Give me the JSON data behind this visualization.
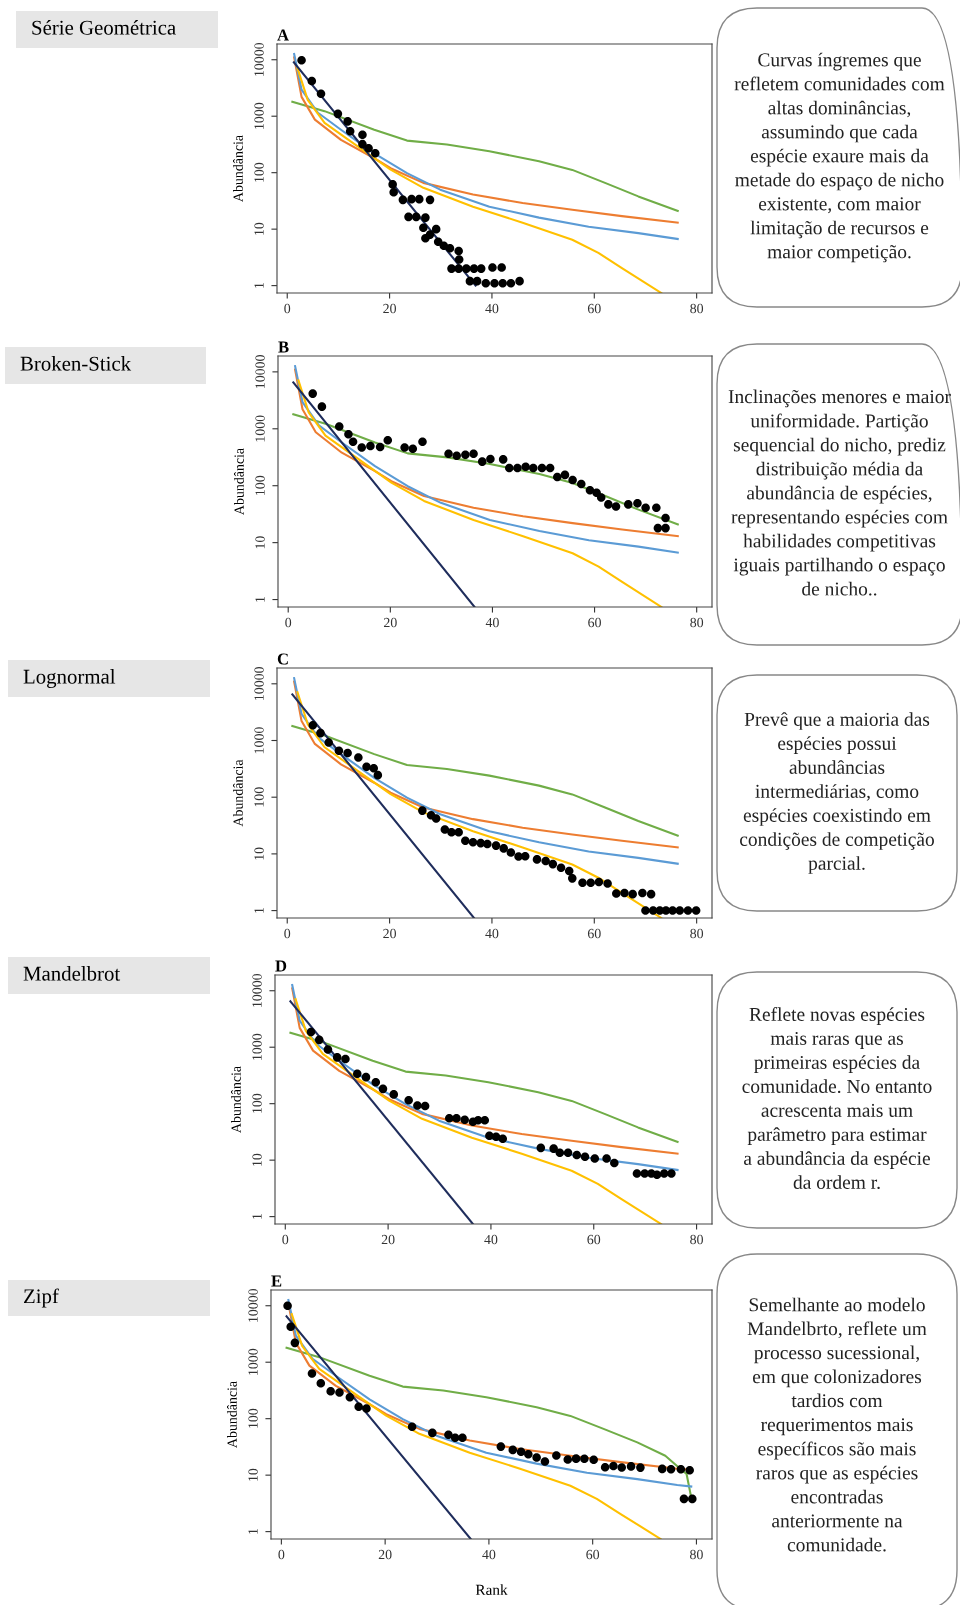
{
  "chart_data": [
    {
      "type": "line",
      "title": "A",
      "ylabel": "Abundância",
      "log": "y",
      "xlim": [
        -2,
        83
      ],
      "ylim": [
        0.74,
        19000
      ],
      "xticks": [
        0,
        20,
        40,
        60,
        80
      ],
      "yticks": [
        1,
        10,
        100,
        1000,
        10000
      ],
      "annotations": [
        "Série Geométrica",
        "Curvas íngremes que\nrefletem comunidades com\naltas dominâncias,\nassumindo que cada\nespécie exaure mais da\nmetade do espaço de nicho\nexistente, com maior\nlimitação de recursos e\nmaior competição."
      ],
      "series": [
        {
          "color": "#70ad47",
          "x": [
            1,
            7.3,
            17,
            23.4,
            31.2,
            39.5,
            49.2,
            55.7,
            62.1,
            68.6,
            76.3
          ],
          "values": [
            1800,
            1230,
            575,
            370,
            315,
            240,
            160,
            112,
            66,
            38,
            21
          ]
        },
        {
          "color": "#ed7d31",
          "x": [
            1.35,
            2.8,
            5.4,
            10.5,
            17,
            20.2,
            26.6,
            36.3,
            46,
            55.7,
            65.4,
            76.3
          ],
          "values": [
            11000,
            2200,
            870,
            380,
            180,
            120,
            66,
            41,
            29,
            22,
            17,
            13
          ]
        },
        {
          "color": "#5b9bd5",
          "x": [
            1.35,
            2.8,
            6,
            10.5,
            17,
            23.4,
            29.9,
            39.5,
            49.2,
            58.9,
            68.6,
            76.3
          ],
          "values": [
            12600,
            2950,
            1150,
            575,
            220,
            98,
            50,
            25,
            16,
            11,
            8.5,
            6.7
          ]
        },
        {
          "color": "#ffc000",
          "x": [
            2,
            4,
            7.3,
            13.7,
            20.2,
            26.6,
            36.3,
            46,
            55.7,
            60.8,
            65.4,
            73.1
          ],
          "values": [
            7100,
            1950,
            760,
            295,
            113,
            54,
            25,
            13,
            6.5,
            3.8,
            2.05,
            0.74
          ]
        },
        {
          "color": "#1f2d5c",
          "x": [
            1.3,
            36.8
          ],
          "values": [
            9000,
            1
          ]
        },
        {
          "type": "scatter",
          "color": "#000000",
          "marker": "circle",
          "x": [
            2.8,
            4.8,
            6.6,
            9.9,
            11.8,
            12.3,
            14.7,
            14.7,
            15.9,
            17.2,
            20.6,
            20.8,
            22.6,
            24.3,
            25.8,
            27.9,
            23.7,
            25.2,
            27.0,
            26.6,
            29.1,
            27.0,
            27.9,
            29.5,
            30.6,
            31.8,
            33.5,
            33.6,
            32.1,
            33.5,
            35.0,
            36.5,
            37.9,
            40.1,
            41.9,
            35.7,
            37.1,
            38.8,
            40.5,
            42.1,
            43.7,
            45.4
          ],
          "values": [
            9800,
            4200,
            2500,
            1100,
            810,
            540,
            470,
            320,
            270,
            220,
            62,
            45,
            33,
            34,
            34,
            33,
            16.5,
            16.5,
            16,
            10.6,
            10,
            6.9,
            8,
            6,
            5.1,
            4.6,
            4.1,
            2.9,
            2,
            2,
            2,
            2,
            2,
            2.1,
            2.1,
            1.2,
            1.2,
            1.1,
            1.1,
            1.1,
            1.1,
            1.2
          ]
        }
      ]
    },
    {
      "type": "line",
      "title": "B",
      "ylabel": "Abundância",
      "log": "y",
      "xlim": [
        -2,
        83
      ],
      "ylim": [
        0.74,
        19000
      ],
      "xticks": [
        0,
        20,
        40,
        60,
        80
      ],
      "yticks": [
        1,
        10,
        100,
        1000,
        10000
      ],
      "annotations": [
        "Broken-Stick",
        "Inclinações menores e maior\nuniformidade. Partição\nsequencial do nicho, prediz\ndistribuição média da\nabundância de espécies,\nrepresentando espécies com\nhabilidades competitivas\niguais partilhando o espaço\nde nicho.."
      ],
      "series": [
        {
          "color": "#70ad47",
          "x": [
            1,
            7.3,
            17,
            23.4,
            31.2,
            39.5,
            49.2,
            55.7,
            62.1,
            68.6,
            76.3
          ],
          "values": [
            1800,
            1230,
            575,
            370,
            315,
            240,
            160,
            112,
            66,
            38,
            21
          ]
        },
        {
          "color": "#ed7d31",
          "x": [
            1.35,
            2.8,
            5.4,
            10.5,
            17,
            20.2,
            26.6,
            36.3,
            46,
            55.7,
            65.4,
            76.3
          ],
          "values": [
            11000,
            2200,
            870,
            380,
            180,
            120,
            66,
            41,
            29,
            22,
            17,
            13
          ]
        },
        {
          "color": "#5b9bd5",
          "x": [
            1.35,
            2.8,
            6,
            10.5,
            17,
            23.4,
            29.9,
            39.5,
            49.2,
            58.9,
            68.6,
            76.3
          ],
          "values": [
            12600,
            2950,
            1150,
            575,
            220,
            98,
            50,
            25,
            16,
            11,
            8.5,
            6.7
          ]
        },
        {
          "color": "#ffc000",
          "x": [
            2,
            4,
            7.3,
            13.7,
            20.2,
            26.6,
            36.3,
            46,
            55.7,
            60.8,
            65.4,
            73.1
          ],
          "values": [
            7100,
            1950,
            760,
            295,
            113,
            54,
            25,
            13,
            6.5,
            3.8,
            2.05,
            0.74
          ]
        },
        {
          "color": "#1f2d5c",
          "x": [
            1,
            36.5
          ],
          "values": [
            6500,
            0.74
          ]
        },
        {
          "type": "scatter",
          "color": "#000000",
          "marker": "circle",
          "x": [
            4.8,
            6.6,
            10.0,
            11.8,
            12.7,
            14.4,
            16.1,
            18.0,
            19.5,
            22.8,
            24.4,
            26.3,
            31.4,
            33.0,
            34.7,
            36.3,
            38.0,
            39.6,
            42.1,
            43.3,
            44.9,
            46.5,
            48.0,
            49.7,
            51.3,
            52.7,
            54.2,
            55.7,
            57.4,
            59.1,
            60.4,
            61.3,
            62.7,
            64.2,
            66.6,
            68.4,
            70.0,
            72.1,
            73.9,
            72.4,
            73.9
          ],
          "values": [
            4150,
            2450,
            1100,
            800,
            590,
            470,
            500,
            480,
            630,
            470,
            445,
            590,
            365,
            335,
            350,
            365,
            265,
            295,
            290,
            205,
            205,
            215,
            205,
            205,
            205,
            142,
            155,
            126,
            107,
            83,
            75,
            62,
            47,
            43,
            47,
            49,
            41,
            41,
            27,
            18,
            18
          ]
        }
      ]
    },
    {
      "type": "line",
      "title": "C",
      "ylabel": "Abundância",
      "log": "y",
      "xlim": [
        -2,
        83
      ],
      "ylim": [
        0.74,
        19000
      ],
      "xticks": [
        0,
        20,
        40,
        60,
        80
      ],
      "yticks": [
        1,
        10,
        100,
        1000,
        10000
      ],
      "annotations": [
        "Lognormal",
        "Prevê que a maioria das\nespécies possui\nabundâncias\nintermediárias, como\nespécies coexistindo em\ncondições de competição\nparcial."
      ],
      "series": [
        {
          "color": "#70ad47",
          "x": [
            1,
            7.3,
            17,
            23.4,
            31.2,
            39.5,
            49.2,
            55.7,
            62.1,
            68.6,
            76.3
          ],
          "values": [
            1800,
            1230,
            575,
            370,
            315,
            240,
            160,
            112,
            66,
            38,
            21
          ]
        },
        {
          "color": "#ed7d31",
          "x": [
            1.35,
            2.8,
            5.4,
            10.5,
            17,
            20.2,
            26.6,
            36.3,
            46,
            55.7,
            65.4,
            76.3
          ],
          "values": [
            11000,
            2200,
            870,
            380,
            180,
            120,
            66,
            41,
            29,
            22,
            17,
            13
          ]
        },
        {
          "color": "#5b9bd5",
          "x": [
            1.35,
            2.8,
            6,
            10.5,
            17,
            23.4,
            29.9,
            39.5,
            49.2,
            58.9,
            68.6,
            76.3
          ],
          "values": [
            12600,
            2950,
            1150,
            575,
            220,
            98,
            50,
            25,
            16,
            11,
            8.5,
            6.7
          ]
        },
        {
          "color": "#ffc000",
          "x": [
            2,
            4,
            7.3,
            13.7,
            20.2,
            26.6,
            36.3,
            46,
            55.7,
            60.8,
            65.4,
            73.1
          ],
          "values": [
            7100,
            1950,
            760,
            295,
            113,
            54,
            25,
            13,
            6.5,
            3.8,
            2.05,
            0.74
          ]
        },
        {
          "color": "#1f2d5c",
          "x": [
            1,
            36.5
          ],
          "values": [
            6500,
            0.74
          ]
        },
        {
          "type": "scatter",
          "color": "#000000",
          "marker": "circle",
          "x": [
            5.0,
            6.5,
            8.1,
            10.1,
            11.8,
            13.9,
            15.5,
            16.9,
            17.7,
            26.4,
            28.1,
            29.1,
            30.8,
            32.1,
            33.5,
            34.8,
            36.3,
            37.8,
            39.1,
            40.8,
            42.3,
            43.7,
            45.2,
            46.5,
            48.8,
            50.5,
            51.9,
            53.5,
            55.1,
            55.7,
            57.7,
            59.3,
            60.9,
            62.6,
            64.3,
            65.9,
            67.5,
            69.4,
            71.1,
            70.0,
            71.5,
            72.8,
            74.0,
            75.3,
            76.7,
            78.3,
            79.9
          ],
          "values": [
            1860,
            1350,
            920,
            660,
            600,
            500,
            345,
            325,
            245,
            58,
            48,
            42,
            27,
            24,
            24,
            17,
            16,
            15.5,
            15,
            14,
            12.5,
            10.6,
            9,
            9.1,
            8,
            7.5,
            6.6,
            5.7,
            5,
            3.7,
            3.1,
            3.1,
            3.2,
            3,
            2,
            2.05,
            1.95,
            2.05,
            1.95,
            1,
            1,
            1,
            1,
            1,
            1,
            1,
            1
          ]
        }
      ]
    },
    {
      "type": "line",
      "title": "D",
      "ylabel": "Abundância",
      "log": "y",
      "xlim": [
        -2,
        83
      ],
      "ylim": [
        0.74,
        19000
      ],
      "xticks": [
        0,
        20,
        40,
        60,
        80
      ],
      "yticks": [
        1,
        10,
        100,
        1000,
        10000
      ],
      "annotations": [
        "Mandelbrot",
        "Reflete novas espécies\nmais raras que as\nprimeiras espécies da\ncomunidade. No entanto\nacrescenta mais um\nparâmetro para estimar\na abundância da espécie\nda ordem r."
      ],
      "series": [
        {
          "color": "#70ad47",
          "x": [
            1,
            7.3,
            17,
            23.4,
            31.2,
            39.5,
            49.2,
            55.7,
            62.1,
            68.6,
            76.3
          ],
          "values": [
            1800,
            1230,
            575,
            370,
            315,
            240,
            160,
            112,
            66,
            38,
            21
          ]
        },
        {
          "color": "#ed7d31",
          "x": [
            1.35,
            2.8,
            5.4,
            10.5,
            17,
            20.2,
            26.6,
            36.3,
            46,
            55.7,
            65.4,
            76.3
          ],
          "values": [
            11000,
            2200,
            870,
            380,
            180,
            120,
            66,
            41,
            29,
            22,
            17,
            13
          ]
        },
        {
          "color": "#5b9bd5",
          "x": [
            1.35,
            2.8,
            6,
            10.5,
            17,
            23.4,
            29.9,
            39.5,
            49.2,
            58.9,
            68.6,
            76.3
          ],
          "values": [
            12600,
            2950,
            1150,
            575,
            220,
            98,
            50,
            25,
            16,
            11,
            8.5,
            6.7
          ]
        },
        {
          "color": "#ffc000",
          "x": [
            2,
            4,
            7.3,
            13.7,
            20.2,
            26.6,
            36.3,
            46,
            55.7,
            60.8,
            65.4,
            73.1
          ],
          "values": [
            7100,
            1950,
            760,
            295,
            113,
            54,
            25,
            13,
            6.5,
            3.8,
            2.05,
            0.74
          ]
        },
        {
          "color": "#1f2d5c",
          "x": [
            1,
            36.5
          ],
          "values": [
            6500,
            0.74
          ]
        },
        {
          "type": "scatter",
          "color": "#000000",
          "marker": "circle",
          "x": [
            5.0,
            6.6,
            8.3,
            10.1,
            11.7,
            14.0,
            15.7,
            17.6,
            19.0,
            21.1,
            24.0,
            25.7,
            27.2,
            31.9,
            33.3,
            34.9,
            36.5,
            37.5,
            38.8,
            39.7,
            41.0,
            42.3,
            49.7,
            52.2,
            53.4,
            55.0,
            56.7,
            58.3,
            60.2,
            62.5,
            64.0,
            68.4,
            69.9,
            71.2,
            72.3,
            73.7,
            75.1
          ],
          "values": [
            1860,
            1350,
            910,
            660,
            620,
            340,
            295,
            240,
            183,
            146,
            115,
            93,
            91,
            55,
            55,
            52,
            48,
            51,
            51,
            27,
            26,
            24,
            16.5,
            16,
            13.5,
            13.5,
            12.3,
            11.5,
            10.7,
            10.7,
            8.9,
            5.8,
            5.8,
            5.8,
            5.5,
            5.8,
            5.8
          ]
        }
      ]
    },
    {
      "type": "line",
      "title": "E",
      "ylabel": "Abundância",
      "xlabel": "Rank",
      "log": "y",
      "xlim": [
        -2,
        83
      ],
      "ylim": [
        0.74,
        19000
      ],
      "xticks": [
        0,
        20,
        40,
        60,
        80
      ],
      "yticks": [
        1,
        10,
        100,
        1000,
        10000
      ],
      "annotations": [
        "Zipf",
        "Semelhante ao modelo\nMandelbrto, reflete um\nprocesso sucessional,\nem que colonizadores\ntardios com\nrequerimentos mais\nespecíficos são mais\nraros que as espécies\nencontradas\nanteriormente na\ncomunidade."
      ],
      "series": [
        {
          "color": "#70ad47",
          "x": [
            1,
            7.3,
            17,
            23.4,
            31.2,
            39.5,
            49.2,
            55.7,
            62.1,
            68.6,
            74,
            76.1,
            78.1,
            79
          ],
          "values": [
            1800,
            1230,
            575,
            370,
            315,
            240,
            160,
            112,
            66,
            38,
            22,
            15,
            10.5,
            4
          ]
        },
        {
          "color": "#ed7d31",
          "x": [
            1.35,
            2.8,
            5.4,
            10.5,
            17,
            20.2,
            26.6,
            36.3,
            46,
            55.7,
            65.4,
            76.3,
            79
          ],
          "values": [
            11000,
            2200,
            870,
            380,
            180,
            120,
            66,
            41,
            29,
            22,
            17,
            13,
            12.5
          ]
        },
        {
          "color": "#5b9bd5",
          "x": [
            1.35,
            2.8,
            6,
            10.5,
            17,
            23.4,
            29.9,
            39.5,
            49.2,
            58.9,
            68.6,
            76.3,
            79
          ],
          "values": [
            12600,
            2950,
            1150,
            575,
            220,
            98,
            50,
            25,
            16,
            11,
            8.5,
            6.7,
            6.3
          ]
        },
        {
          "color": "#ffc000",
          "x": [
            2,
            4,
            7.3,
            13.7,
            20.2,
            26.6,
            36.3,
            46,
            55.7,
            60.8,
            65.4,
            73.1
          ],
          "values": [
            7100,
            1950,
            760,
            295,
            113,
            54,
            25,
            13,
            6.5,
            3.8,
            2.05,
            0.74
          ]
        },
        {
          "color": "#1f2d5c",
          "x": [
            1,
            36.5
          ],
          "values": [
            6500,
            0.74
          ]
        },
        {
          "type": "scatter",
          "color": "#000000",
          "marker": "circle",
          "x": [
            1.2,
            1.8,
            2.6,
            5.9,
            7.6,
            9.5,
            11.2,
            13.2,
            14.9,
            16.4,
            25.2,
            29.1,
            32.2,
            33.5,
            34.9,
            42.3,
            44.6,
            46.2,
            47.6,
            49.2,
            50.8,
            53.0,
            55.2,
            56.8,
            58.4,
            60.2,
            62.4,
            64.0,
            65.6,
            67.4,
            69.2,
            73.4,
            75.1,
            77.0,
            78.7,
            77.6,
            79.2
          ],
          "values": [
            10000,
            4250,
            2200,
            630,
            425,
            305,
            290,
            240,
            163,
            152,
            72,
            56,
            52,
            46,
            46,
            32,
            28,
            26,
            23.5,
            20.5,
            17.5,
            22.3,
            19,
            19.6,
            19.5,
            18.7,
            13.8,
            14.5,
            13.7,
            14.3,
            13.6,
            12.9,
            12.7,
            12.7,
            12.2,
            3.8,
            3.8
          ]
        }
      ]
    }
  ]
}
